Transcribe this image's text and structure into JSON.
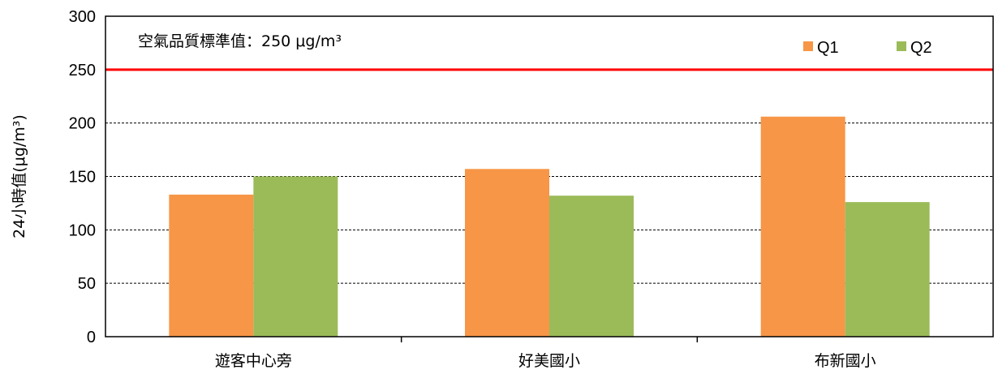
{
  "chart_data": {
    "type": "bar",
    "categories": [
      "遊客中心旁",
      "好美國小",
      "布新國小"
    ],
    "series": [
      {
        "name": "Q1",
        "values": [
          133,
          157,
          206
        ],
        "color": "#F79646"
      },
      {
        "name": "Q2",
        "values": [
          150,
          132,
          126
        ],
        "color": "#9BBB59"
      }
    ],
    "ylabel": "24小時值(μg/m³)",
    "ylim": [
      0,
      300
    ],
    "yticks": [
      0,
      50,
      100,
      150,
      200,
      250,
      300
    ],
    "grid": true,
    "legend_position": "top-right",
    "reference_line": {
      "value": 250,
      "color": "#FF0000",
      "label": "空氣品質標準值：250 μg/m³"
    }
  }
}
